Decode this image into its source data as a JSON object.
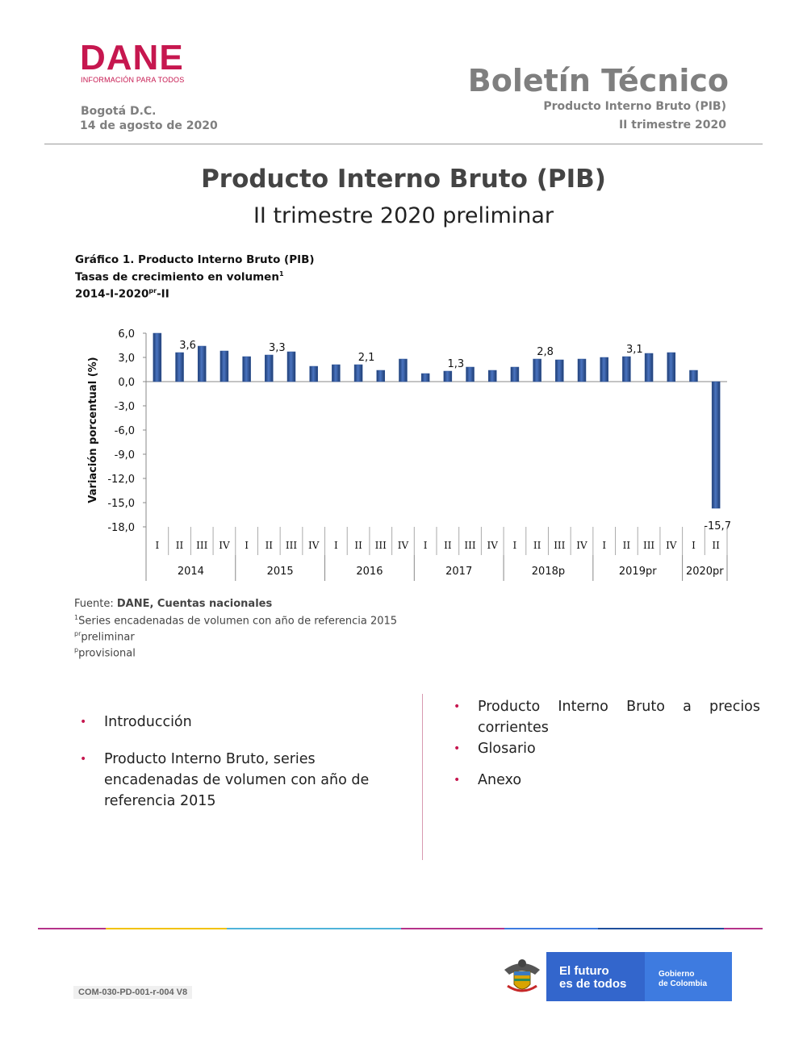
{
  "header": {
    "logo_text": "DANE",
    "logo_tagline": "INFORMACIÓN PARA TODOS",
    "bulletin_title": "Boletín Técnico",
    "subtitle_line1": "Producto Interno Bruto (PIB)",
    "subtitle_line2": "II trimestre 2020",
    "city": "Bogotá D.C.",
    "date": "14 de agosto de 2020"
  },
  "title": {
    "main": "Producto Interno Bruto (PIB)",
    "sub": "II trimestre 2020 preliminar"
  },
  "chart_heading": {
    "line1": "Gráfico 1. Producto Interno Bruto (PIB)",
    "line2": "Tasas de crecimiento en volumen",
    "line2_sup": "1",
    "line3_a": "2014-I-2020",
    "line3_sup": "pr",
    "line3_b": "-II"
  },
  "chart_data": {
    "type": "bar",
    "ylabel": "Variación porcentual  (%)",
    "ylim": [
      -18,
      6
    ],
    "yticks": [
      "6,0",
      "3,0",
      "0,0",
      "-3,0",
      "-6,0",
      "-9,0",
      "-12,0",
      "-15,0",
      "-18,0"
    ],
    "bar_color": "#2f5597",
    "quarters": [
      "I",
      "II",
      "III",
      "IV",
      "I",
      "II",
      "III",
      "IV",
      "I",
      "II",
      "III",
      "IV",
      "I",
      "II",
      "III",
      "IV",
      "I",
      "II",
      "III",
      "IV",
      "I",
      "II",
      "III",
      "IV",
      "I",
      "II"
    ],
    "years": [
      {
        "label": "2014",
        "count": 4
      },
      {
        "label": "2015",
        "count": 4
      },
      {
        "label": "2016",
        "count": 4
      },
      {
        "label": "2017",
        "count": 4
      },
      {
        "label": "2018p",
        "count": 4
      },
      {
        "label": "2019pr",
        "count": 4
      },
      {
        "label": "2020pr",
        "count": 2
      }
    ],
    "values": [
      6.0,
      3.6,
      4.4,
      3.8,
      3.1,
      3.3,
      3.7,
      1.9,
      2.1,
      2.1,
      1.4,
      2.8,
      1.0,
      1.3,
      1.8,
      1.4,
      1.8,
      2.8,
      2.7,
      2.8,
      3.0,
      3.1,
      3.5,
      3.6,
      1.4,
      -15.7
    ],
    "data_labels": [
      {
        "index": 1,
        "text": "3,6"
      },
      {
        "index": 5,
        "text": "3,3"
      },
      {
        "index": 9,
        "text": "2,1"
      },
      {
        "index": 13,
        "text": "1,3"
      },
      {
        "index": 17,
        "text": "2,8"
      },
      {
        "index": 21,
        "text": "3,1"
      },
      {
        "index": 25,
        "text": "-15,7"
      }
    ]
  },
  "footnotes": {
    "source_prefix": "Fuente: ",
    "source_bold": "DANE, Cuentas nacionales",
    "note1_sup": "1",
    "note1": "Series encadenadas de volumen con año de referencia 2015",
    "note2_sup": "pr",
    "note2": "preliminar",
    "note3_sup": "p",
    "note3": "provisional"
  },
  "toc": {
    "left": [
      "Introducción",
      "Producto Interno Bruto, series encadenadas de volumen con año de referencia 2015"
    ],
    "right": [
      "Producto Interno Bruto a precios corrientes",
      "Glosario",
      "Anexo"
    ],
    "bullet": "•"
  },
  "footer": {
    "code": "COM-030-PD-001-r-004 V8",
    "gov_slogan_1": "El futuro",
    "gov_slogan_2": "es de todos",
    "gov_name_1": "Gobierno",
    "gov_name_2": "de Colombia",
    "bar_colors": [
      "#b5338a",
      "#f2c200",
      "#4fb3d9",
      "#b5338a",
      "#3e7be0",
      "#1f4e9b",
      "#b5338a"
    ]
  }
}
